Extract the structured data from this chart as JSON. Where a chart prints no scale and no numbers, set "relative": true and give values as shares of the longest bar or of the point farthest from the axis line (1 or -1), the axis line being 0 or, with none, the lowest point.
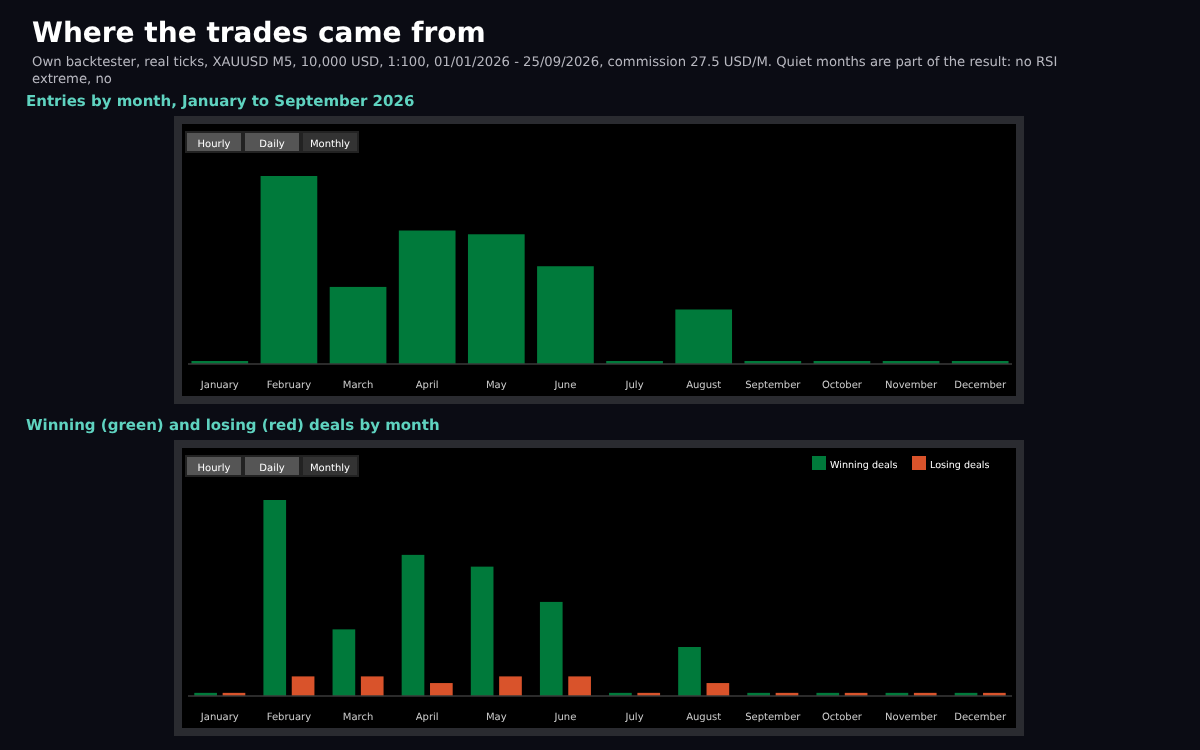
{
  "chart_data": [
    {
      "type": "other",
      "title": "Where the trades came from",
      "subtitle": "Own backtester, real ticks, XAUUSD M5, 10,000 USD, 1:100, 01/01/2026 - 25/09/2026, commission 27.5 USD/M. Quiet months are part of the result: no RSI extreme, no"
    },
    {
      "type": "bar",
      "title": "Entries by month, January to September 2026",
      "relative": true,
      "categories": [
        "January",
        "February",
        "March",
        "April",
        "May",
        "June",
        "July",
        "August",
        "September",
        "October",
        "November",
        "December"
      ],
      "series": [
        {
          "color": "#007a3b",
          "values": [
            0.016,
            1,
            0.41,
            0.71,
            0.69,
            0.52,
            0.016,
            0.29,
            0.016,
            0.016,
            0.016,
            0.016
          ]
        }
      ],
      "annotations": [
        "Hourly",
        "Daily",
        "Monthly"
      ]
    },
    {
      "type": "bar",
      "title": "Winning (green) and losing (red) deals by month",
      "relative": true,
      "legend": "top right",
      "categories": [
        "January",
        "February",
        "March",
        "April",
        "May",
        "June",
        "July",
        "August",
        "September",
        "October",
        "November",
        "December"
      ],
      "series": [
        {
          "name": "Winning deals",
          "color": "#007a3b",
          "values": [
            0.016,
            1,
            0.34,
            0.72,
            0.66,
            0.48,
            0.016,
            0.25,
            0.016,
            0.016,
            0.016,
            0.016
          ]
        },
        {
          "name": "Losing deals",
          "color": "#d9532b",
          "values": [
            0.016,
            0.1,
            0.1,
            0.066,
            0.1,
            0.1,
            0.016,
            0.066,
            0.016,
            0.016,
            0.016,
            0.016
          ]
        }
      ],
      "annotations": [
        "Hourly",
        "Daily",
        "Monthly"
      ]
    }
  ]
}
